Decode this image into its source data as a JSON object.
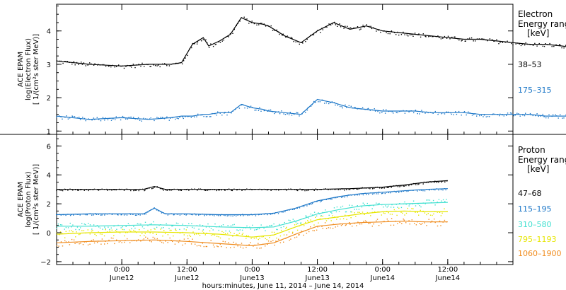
{
  "chart_data": [
    {
      "type": "scatter",
      "panel": "electron",
      "ylabel_lines": [
        "ACE EPAM",
        "log(Electron Flux)",
        "[ 1/(cm²s ster MeV)]"
      ],
      "legend_title_lines": [
        "Electron",
        "Energy ranges",
        "[keV]"
      ],
      "ylim": [
        0.9,
        4.8
      ],
      "yticks": [
        1,
        2,
        3,
        4
      ],
      "x_unit": "hours since 2014-06-11 12:00",
      "series": [
        {
          "name": "38–53",
          "color": "#000000",
          "x": [
            0,
            6,
            12,
            17,
            21,
            23,
            25,
            27,
            28,
            30,
            32,
            34,
            36,
            38,
            39,
            42,
            45,
            48,
            51,
            54,
            57,
            60,
            63,
            66,
            69,
            72,
            75,
            78,
            81,
            84,
            87,
            90,
            93,
            95,
            96
          ],
          "y": [
            3.1,
            3.0,
            2.95,
            3.0,
            3.0,
            3.05,
            3.6,
            3.8,
            3.55,
            3.7,
            3.9,
            4.4,
            4.25,
            4.2,
            4.15,
            3.85,
            3.65,
            4.0,
            4.25,
            4.05,
            4.15,
            4.0,
            3.95,
            3.9,
            3.85,
            3.8,
            3.75,
            3.75,
            3.7,
            3.65,
            3.6,
            3.6,
            3.55,
            3.5,
            3.45
          ]
        },
        {
          "name": "175–315",
          "color": "#1e78c8",
          "x": [
            0,
            6,
            12,
            17,
            21,
            23,
            25,
            27,
            28,
            30,
            32,
            34,
            36,
            38,
            39,
            42,
            45,
            48,
            51,
            54,
            57,
            60,
            63,
            66,
            69,
            72,
            75,
            78,
            81,
            84,
            87,
            90,
            93,
            95,
            96
          ],
          "y": [
            1.45,
            1.35,
            1.4,
            1.35,
            1.4,
            1.45,
            1.45,
            1.5,
            1.5,
            1.55,
            1.55,
            1.8,
            1.7,
            1.65,
            1.6,
            1.55,
            1.5,
            1.95,
            1.85,
            1.7,
            1.65,
            1.6,
            1.6,
            1.6,
            1.55,
            1.55,
            1.55,
            1.5,
            1.5,
            1.5,
            1.5,
            1.45,
            1.45,
            1.45,
            1.45
          ]
        }
      ]
    },
    {
      "type": "scatter",
      "panel": "proton",
      "ylabel_lines": [
        "ACE EPAM",
        "log(Proton Flux)",
        "[ 1/(cm²s ster MeV)]"
      ],
      "legend_title_lines": [
        "Proton",
        "Energy ranges",
        "[keV]"
      ],
      "ylim": [
        -2.2,
        6.8
      ],
      "yticks": [
        -2,
        0,
        2,
        4,
        6
      ],
      "x_unit": "hours since 2014-06-11 12:00",
      "xticks": [
        {
          "x": 12,
          "label": "0:00",
          "sub": "June12"
        },
        {
          "x": 24,
          "label": "12:00",
          "sub": "June12"
        },
        {
          "x": 36,
          "label": "0:00",
          "sub": "June13"
        },
        {
          "x": 48,
          "label": "12:00",
          "sub": "June13"
        },
        {
          "x": 60,
          "label": "0:00",
          "sub": "June14"
        },
        {
          "x": 72,
          "label": "12:00",
          "sub": "June14"
        }
      ],
      "xlabel": "hours:minutes, June 11, 2014 – June 14, 2014",
      "xlim": [
        0,
        84
      ],
      "series": [
        {
          "name": "47–68",
          "color": "#000000",
          "x": [
            0,
            6,
            12,
            16,
            18,
            20,
            24,
            30,
            36,
            42,
            48,
            54,
            60,
            64,
            68,
            72
          ],
          "y": [
            3.0,
            3.0,
            3.0,
            3.0,
            3.2,
            3.0,
            3.0,
            3.0,
            3.0,
            3.0,
            3.0,
            3.05,
            3.15,
            3.3,
            3.5,
            3.6
          ]
        },
        {
          "name": "115–195",
          "color": "#1e78c8",
          "x": [
            0,
            6,
            12,
            16,
            18,
            20,
            24,
            30,
            36,
            40,
            44,
            48,
            52,
            56,
            60,
            64,
            68,
            72
          ],
          "y": [
            1.25,
            1.3,
            1.3,
            1.3,
            1.7,
            1.3,
            1.3,
            1.25,
            1.25,
            1.35,
            1.7,
            2.2,
            2.5,
            2.7,
            2.8,
            2.9,
            3.0,
            3.05
          ]
        },
        {
          "name": "310–580",
          "color": "#40e0d0",
          "x": [
            0,
            6,
            12,
            18,
            24,
            30,
            36,
            40,
            44,
            48,
            52,
            56,
            60,
            64,
            68,
            72
          ],
          "y": [
            0.45,
            0.45,
            0.5,
            0.55,
            0.5,
            0.4,
            0.35,
            0.4,
            0.8,
            1.3,
            1.6,
            1.85,
            1.95,
            2.0,
            2.05,
            2.1
          ]
        },
        {
          "name": "795–1193",
          "color": "#e6e600",
          "x": [
            0,
            6,
            12,
            18,
            24,
            30,
            36,
            40,
            44,
            48,
            52,
            56,
            60,
            64,
            68,
            72
          ],
          "y": [
            -0.1,
            0.0,
            0.05,
            0.05,
            0.0,
            -0.1,
            -0.3,
            -0.15,
            0.4,
            0.9,
            1.1,
            1.3,
            1.45,
            1.5,
            1.45,
            1.45
          ]
        },
        {
          "name": "1060–1900",
          "color": "#f08c1e",
          "x": [
            0,
            6,
            12,
            18,
            24,
            30,
            36,
            40,
            44,
            48,
            52,
            56,
            60,
            64,
            68,
            72
          ],
          "y": [
            -0.7,
            -0.6,
            -0.55,
            -0.5,
            -0.6,
            -0.75,
            -0.9,
            -0.7,
            -0.1,
            0.45,
            0.6,
            0.7,
            0.75,
            0.8,
            0.75,
            0.75
          ]
        }
      ]
    }
  ]
}
